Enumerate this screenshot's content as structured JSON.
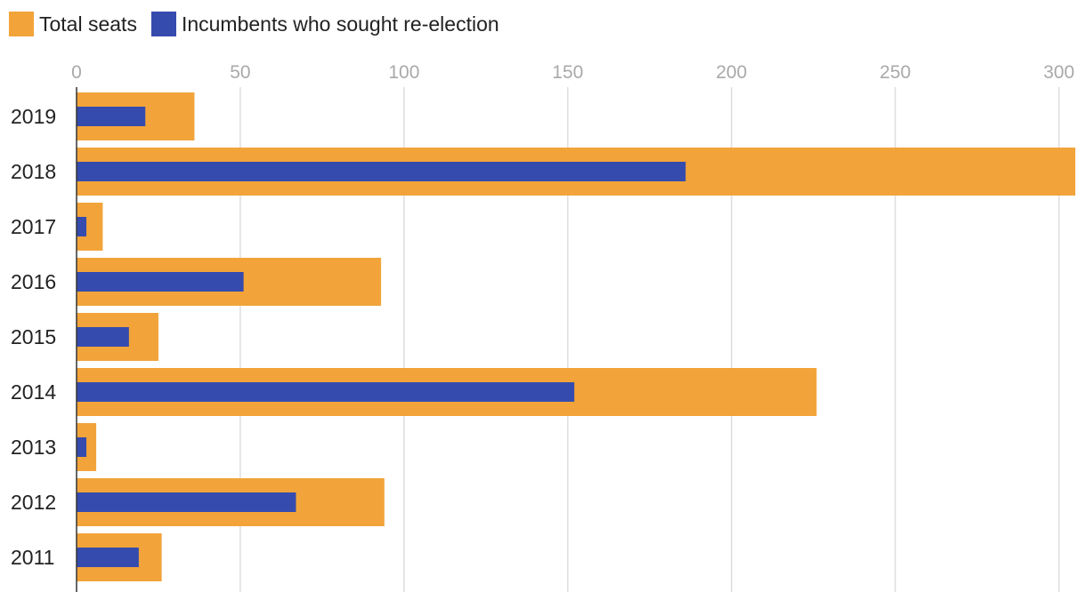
{
  "legend": {
    "total_label": "Total seats",
    "incumbent_label": "Incumbents who sought re-election"
  },
  "chart_data": {
    "type": "bar",
    "orientation": "horizontal",
    "categories": [
      "2019",
      "2018",
      "2017",
      "2016",
      "2015",
      "2014",
      "2013",
      "2012",
      "2011"
    ],
    "series": [
      {
        "name": "Total seats",
        "color": "#F2A43A",
        "values": [
          36,
          305,
          8,
          93,
          25,
          226,
          6,
          94,
          26
        ]
      },
      {
        "name": "Incumbents who sought re-election",
        "color": "#354CAE",
        "values": [
          21,
          186,
          3,
          51,
          16,
          152,
          3,
          67,
          19
        ]
      }
    ],
    "xlim": [
      0,
      305
    ],
    "xticks": [
      0,
      50,
      100,
      150,
      200,
      250,
      300
    ],
    "grid": true,
    "legend_position": "top-left",
    "xaxis_position": "top"
  }
}
